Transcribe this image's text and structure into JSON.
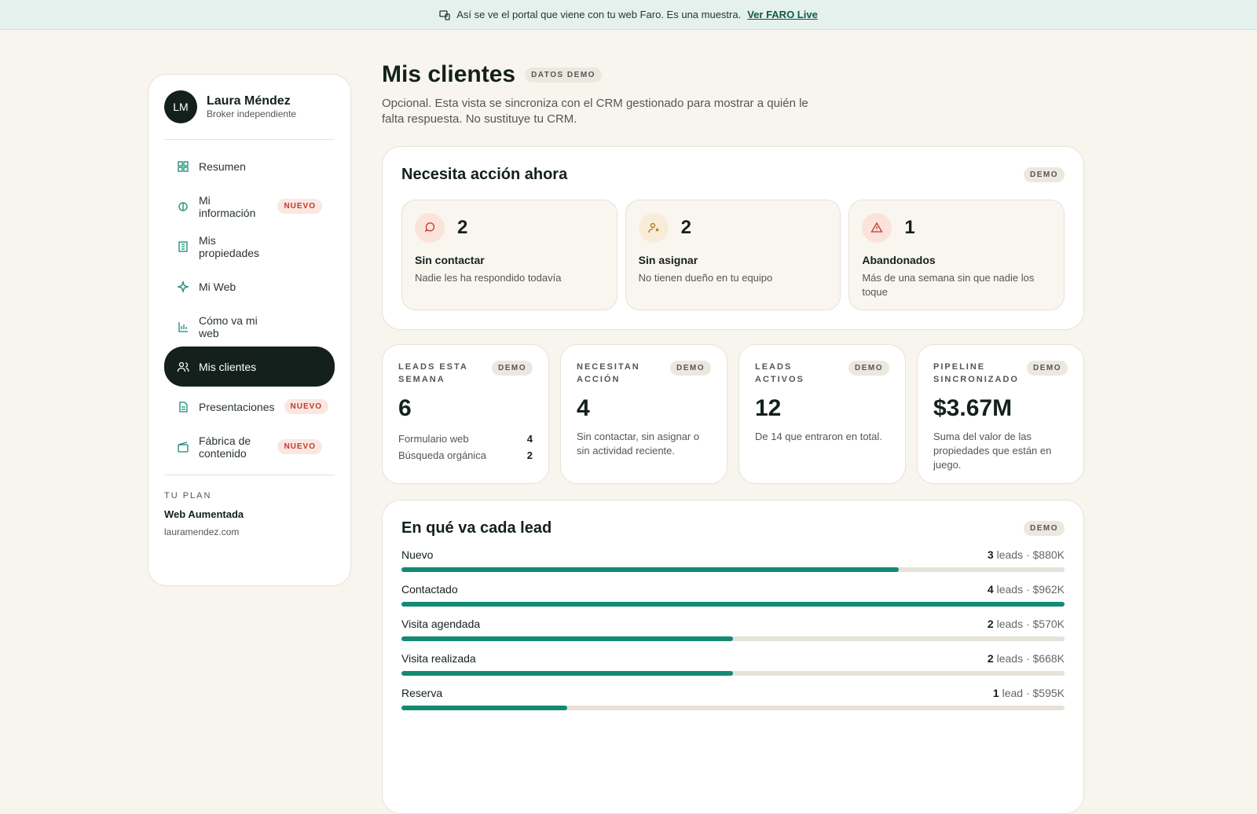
{
  "banner": {
    "text": "Así se ve el portal que viene con tu web Faro. Es una muestra.",
    "link": "Ver FARO Live"
  },
  "sidebar": {
    "avatar": "LM",
    "name": "Laura Méndez",
    "role": "Broker independiente",
    "nav": [
      {
        "label": "Resumen"
      },
      {
        "label": "Mi información",
        "badge": "NUEVO"
      },
      {
        "label": "Mis propiedades"
      },
      {
        "label": "Mi Web"
      },
      {
        "label": "Cómo va mi web"
      },
      {
        "label": "Mis clientes",
        "active": true
      },
      {
        "label": "Presentaciones",
        "badge": "NUEVO"
      },
      {
        "label": "Fábrica de contenido",
        "badge": "NUEVO"
      }
    ],
    "plan": {
      "heading": "TU PLAN",
      "name": "Web Aumentada",
      "domain": "lauramendez.com"
    }
  },
  "header": {
    "title": "Mis clientes",
    "tag": "DATOS DEMO",
    "description": "Opcional. Esta vista se sincroniza con el CRM gestionado para mostrar a quién le falta respuesta. No sustituye tu CRM."
  },
  "action": {
    "title": "Necesita acción ahora",
    "tag": "DEMO",
    "cards": [
      {
        "count": 2,
        "label": "Sin contactar",
        "desc": "Nadie les ha respondido todavía"
      },
      {
        "count": 2,
        "label": "Sin asignar",
        "desc": "No tienen dueño en tu equipo"
      },
      {
        "count": 1,
        "label": "Abandonados",
        "desc": "Más de una semana sin que nadie los toque"
      }
    ]
  },
  "stats": [
    {
      "label": "LEADS ESTA SEMANA",
      "tag": "DEMO",
      "value": 6,
      "breakdown": [
        {
          "label": "Formulario web",
          "value": 4
        },
        {
          "label": "Búsqueda orgánica",
          "value": 2
        }
      ]
    },
    {
      "label": "NECESITAN ACCIÓN",
      "tag": "DEMO",
      "value": 4,
      "desc": "Sin contactar, sin asignar o sin actividad reciente."
    },
    {
      "label": "LEADS ACTIVOS",
      "tag": "DEMO",
      "value": 12,
      "desc": "De 14 que entraron en total."
    },
    {
      "label": "PIPELINE SINCRONIZADO",
      "tag": "DEMO",
      "value": "$3.67M",
      "desc": "Suma del valor de las propiedades que están en juego."
    }
  ],
  "pipeline": {
    "title": "En qué va cada lead",
    "tag": "DEMO",
    "stages": [
      {
        "name": "Nuevo",
        "count": 3,
        "rest": "leads · $880K"
      },
      {
        "name": "Contactado",
        "count": 4,
        "rest": "leads · $962K"
      },
      {
        "name": "Visita agendada",
        "count": 2,
        "rest": "leads · $570K"
      },
      {
        "name": "Visita realizada",
        "count": 2,
        "rest": "leads · $668K"
      },
      {
        "name": "Reserva",
        "count": 1,
        "rest": "lead · $595K"
      }
    ]
  }
}
